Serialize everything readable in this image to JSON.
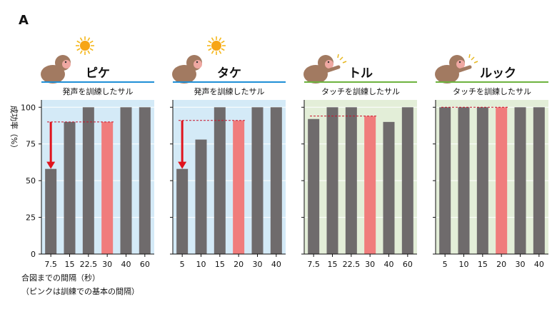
{
  "figure": {
    "panel_label": "A",
    "y_axis_label": "成功率（%）",
    "x_note_line1": "合図までの間隔（秒）",
    "x_note_line2": "（ピンクは訓練での基本の間隔）"
  },
  "colors": {
    "bar_gray": "#6f6b6c",
    "bar_pink": "#f07c7c",
    "bg_blue": "#d4eaf7",
    "bg_green": "#e3eed8",
    "line_blue": "#1f8fd6",
    "line_green": "#6db33f",
    "arrow_red": "#e0141e",
    "dash_red": "#c8142a"
  },
  "chart_data": [
    {
      "type": "bar",
      "title": "ピケ",
      "subtitle": "発声を訓練したサル",
      "theme": "blue",
      "icon": "monkey-with-sun-icon",
      "categories": [
        "7.5",
        "15",
        "22.5",
        "30",
        "40",
        "60"
      ],
      "values": [
        58,
        90,
        100,
        90,
        100,
        100
      ],
      "highlight_index": 3,
      "baseline": 90,
      "arrow": {
        "from": 90,
        "to": 58,
        "index": 0
      },
      "ylim": [
        0,
        105
      ],
      "yticks": [
        0,
        25,
        50,
        75,
        100
      ],
      "grid": true
    },
    {
      "type": "bar",
      "title": "タケ",
      "subtitle": "発声を訓練したサル",
      "theme": "blue",
      "icon": "monkey-with-sun-icon",
      "categories": [
        "5",
        "10",
        "15",
        "20",
        "30",
        "40"
      ],
      "values": [
        58,
        78,
        100,
        91,
        100,
        100
      ],
      "highlight_index": 3,
      "baseline": 91,
      "arrow": {
        "from": 91,
        "to": 58,
        "index": 0
      },
      "ylim": [
        0,
        105
      ],
      "yticks": [
        0,
        25,
        50,
        75,
        100
      ],
      "grid": true
    },
    {
      "type": "bar",
      "title": "トル",
      "subtitle": "タッチを訓練したサル",
      "theme": "green",
      "icon": "monkey-touching-icon",
      "categories": [
        "7.5",
        "15",
        "22.5",
        "30",
        "40",
        "60"
      ],
      "values": [
        92,
        100,
        100,
        94,
        90,
        100
      ],
      "highlight_index": 3,
      "baseline": 94,
      "arrow": null,
      "ylim": [
        0,
        105
      ],
      "yticks": [
        0,
        25,
        50,
        75,
        100
      ],
      "grid": true
    },
    {
      "type": "bar",
      "title": "ルック",
      "subtitle": "タッチを訓練したサル",
      "theme": "green",
      "icon": "monkey-touching-icon",
      "categories": [
        "5",
        "10",
        "15",
        "20",
        "30",
        "40"
      ],
      "values": [
        100,
        100,
        100,
        100,
        100,
        100
      ],
      "highlight_index": 3,
      "baseline": 100,
      "arrow": null,
      "ylim": [
        0,
        105
      ],
      "yticks": [
        0,
        25,
        50,
        75,
        100
      ],
      "grid": true
    }
  ]
}
